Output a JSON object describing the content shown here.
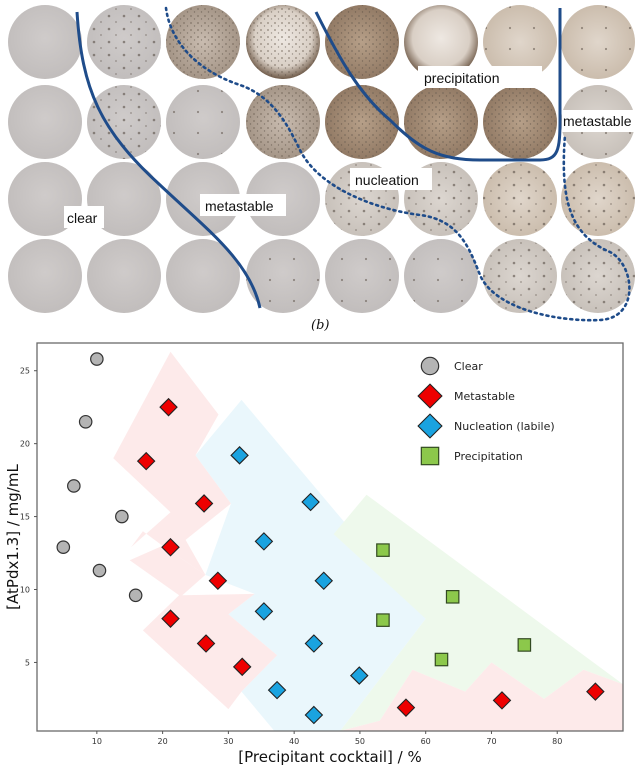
{
  "photo_panel": {
    "caption": "(b)",
    "labels": {
      "precipitation": "precipitation",
      "metastable_right": "metastable",
      "nucleation": "nucleation",
      "metastable_left": "metastable",
      "clear": "clear"
    },
    "wells": [
      [
        "clear",
        "sparse",
        "dense",
        "cloudy",
        "brown",
        "white-brown",
        "light-brown",
        "light-brown"
      ],
      [
        "clear",
        "sparse",
        "few",
        "dense",
        "brown",
        "brown",
        "brown",
        "pale"
      ],
      [
        "clear",
        "clear",
        "clear",
        "clear",
        "speckled",
        "speckled",
        "pale-brown",
        "pale-brown"
      ],
      [
        "clear",
        "clear",
        "clear",
        "few",
        "few",
        "few",
        "speckled",
        "speckled"
      ]
    ]
  },
  "chart_data": {
    "type": "scatter",
    "xlabel": "[Precipitant cocktail] / %",
    "ylabel": "[AtPdx1.3] / mg/mL",
    "xlim": [
      0.9,
      90
    ],
    "ylim": [
      0.3,
      26.9
    ],
    "xticks": [
      10,
      20,
      30,
      40,
      50,
      60,
      70,
      80
    ],
    "yticks": [
      5,
      10,
      15,
      20,
      25
    ],
    "grid": false,
    "legend_position": "top-right",
    "series": [
      {
        "name": "Clear",
        "marker": "circle",
        "color": "#b4b4b4",
        "points": [
          [
            10.0,
            25.8
          ],
          [
            8.3,
            21.5
          ],
          [
            6.5,
            17.1
          ],
          [
            13.8,
            15.0
          ],
          [
            4.9,
            12.9
          ],
          [
            10.4,
            11.3
          ],
          [
            15.9,
            9.6
          ]
        ]
      },
      {
        "name": "Metastable",
        "marker": "diamond",
        "color": "#ee0000",
        "points": [
          [
            20.9,
            22.5
          ],
          [
            17.5,
            18.8
          ],
          [
            26.3,
            15.9
          ],
          [
            21.2,
            12.9
          ],
          [
            28.4,
            10.6
          ],
          [
            21.2,
            8.0
          ],
          [
            26.6,
            6.3
          ],
          [
            32.1,
            4.7
          ],
          [
            57.0,
            1.9
          ],
          [
            71.6,
            2.4
          ],
          [
            85.8,
            3.0
          ]
        ]
      },
      {
        "name": "Nucleation (labile)",
        "marker": "diamond",
        "color": "#1aa3e0",
        "points": [
          [
            31.7,
            19.2
          ],
          [
            42.5,
            16.0
          ],
          [
            35.4,
            13.3
          ],
          [
            44.5,
            10.6
          ],
          [
            35.4,
            8.5
          ],
          [
            43.0,
            6.3
          ],
          [
            37.4,
            3.1
          ],
          [
            43.0,
            1.4
          ],
          [
            49.9,
            4.1
          ]
        ]
      },
      {
        "name": "Precipitation",
        "marker": "square",
        "color": "#8cc84b",
        "points": [
          [
            53.5,
            12.7
          ],
          [
            64.1,
            9.5
          ],
          [
            53.5,
            7.9
          ],
          [
            62.4,
            5.2
          ],
          [
            75.0,
            6.2
          ]
        ]
      }
    ],
    "regions": [
      {
        "name": "metastable-zone",
        "color": "#fdeaea",
        "polygon": [
          [
            12.5,
            19.0
          ],
          [
            21.2,
            26.3
          ],
          [
            28.5,
            22.0
          ],
          [
            25.0,
            19.2
          ],
          [
            30.4,
            15.9
          ],
          [
            23.5,
            13.4
          ],
          [
            26.5,
            11.0
          ],
          [
            20.0,
            13.0
          ],
          [
            17.0,
            14.0
          ],
          [
            15.2,
            12.9
          ],
          [
            21.2,
            15.3
          ],
          [
            12.5,
            19.0
          ]
        ]
      },
      {
        "name": "nucleation-zone",
        "color": "#eaf7fc",
        "polygon": [
          [
            25.0,
            19.2
          ],
          [
            32.0,
            23.0
          ],
          [
            60.0,
            8.0
          ],
          [
            47.0,
            0.3
          ],
          [
            37.0,
            0.3
          ],
          [
            32.0,
            3.0
          ],
          [
            37.4,
            5.5
          ],
          [
            30.0,
            8.3
          ],
          [
            34.0,
            9.7
          ],
          [
            26.5,
            11.0
          ],
          [
            30.4,
            15.9
          ],
          [
            25.0,
            19.2
          ]
        ]
      },
      {
        "name": "precipitation-zone",
        "color": "#eef9ec",
        "polygon": [
          [
            46.0,
            13.8
          ],
          [
            51.0,
            16.5
          ],
          [
            90.0,
            3.5
          ],
          [
            84.0,
            4.5
          ],
          [
            78.0,
            2.5
          ],
          [
            70.0,
            5.0
          ],
          [
            66.0,
            3.0
          ],
          [
            58.0,
            4.5
          ],
          [
            53.0,
            1.0
          ],
          [
            47.0,
            0.3
          ],
          [
            60.0,
            8.0
          ],
          [
            46.0,
            13.8
          ]
        ]
      },
      {
        "name": "metastable-zone-low",
        "color": "#fdeaea",
        "polygon": [
          [
            47.0,
            0.3
          ],
          [
            53.0,
            1.0
          ],
          [
            58.0,
            4.5
          ],
          [
            66.0,
            3.0
          ],
          [
            70.0,
            5.0
          ],
          [
            78.0,
            2.5
          ],
          [
            84.0,
            4.5
          ],
          [
            90.0,
            3.5
          ],
          [
            90.0,
            0.3
          ],
          [
            47.0,
            0.3
          ]
        ]
      },
      {
        "name": "metastable-zone-mid",
        "color": "#fdeaea",
        "polygon": [
          [
            15.0,
            12.0
          ],
          [
            20.0,
            13.0
          ],
          [
            26.5,
            11.0
          ],
          [
            23.0,
            9.6
          ],
          [
            34.0,
            9.7
          ],
          [
            30.0,
            8.3
          ],
          [
            37.4,
            5.5
          ],
          [
            32.0,
            3.0
          ],
          [
            30.0,
            1.8
          ],
          [
            17.0,
            7.2
          ],
          [
            22.5,
            9.6
          ],
          [
            15.0,
            12.0
          ]
        ]
      }
    ]
  }
}
